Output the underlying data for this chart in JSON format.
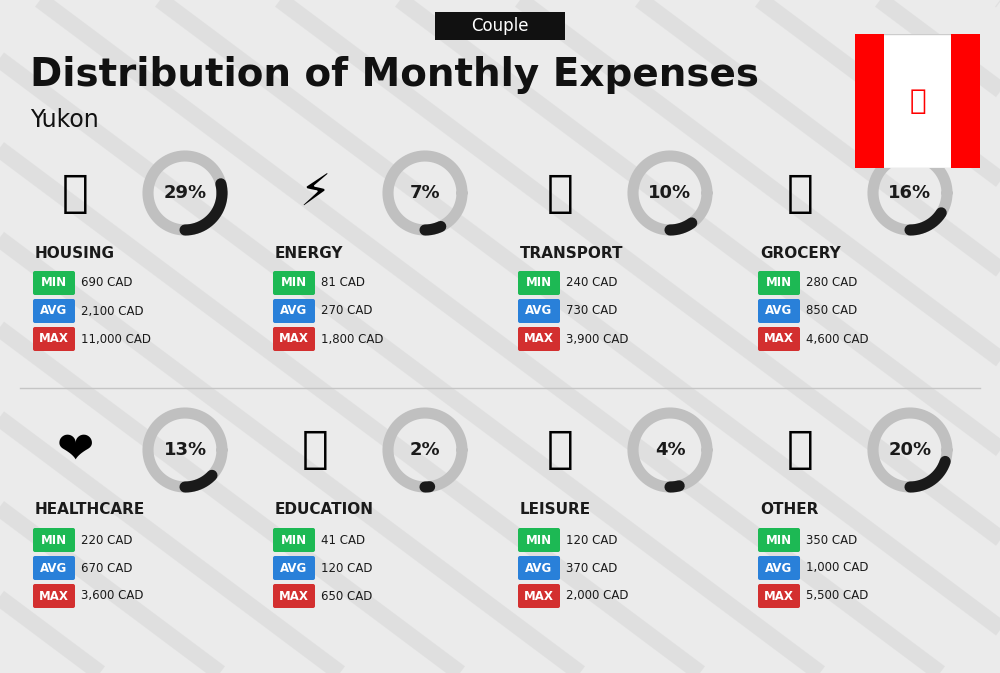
{
  "title": "Distribution of Monthly Expenses",
  "subtitle": "Couple",
  "location": "Yukon",
  "bg_color": "#ebebeb",
  "categories": [
    {
      "name": "HOUSING",
      "percent": 29,
      "min": "690 CAD",
      "avg": "2,100 CAD",
      "max": "11,000 CAD",
      "icon": "🏙",
      "col": 0,
      "row": 0
    },
    {
      "name": "ENERGY",
      "percent": 7,
      "min": "81 CAD",
      "avg": "270 CAD",
      "max": "1,800 CAD",
      "icon": "⚡",
      "col": 1,
      "row": 0
    },
    {
      "name": "TRANSPORT",
      "percent": 10,
      "min": "240 CAD",
      "avg": "730 CAD",
      "max": "3,900 CAD",
      "icon": "🚌",
      "col": 2,
      "row": 0
    },
    {
      "name": "GROCERY",
      "percent": 16,
      "min": "280 CAD",
      "avg": "850 CAD",
      "max": "4,600 CAD",
      "icon": "🛒",
      "col": 3,
      "row": 0
    },
    {
      "name": "HEALTHCARE",
      "percent": 13,
      "min": "220 CAD",
      "avg": "670 CAD",
      "max": "3,600 CAD",
      "icon": "❤",
      "col": 0,
      "row": 1
    },
    {
      "name": "EDUCATION",
      "percent": 2,
      "min": "41 CAD",
      "avg": "120 CAD",
      "max": "650 CAD",
      "icon": "🎓",
      "col": 1,
      "row": 1
    },
    {
      "name": "LEISURE",
      "percent": 4,
      "min": "120 CAD",
      "avg": "370 CAD",
      "max": "2,000 CAD",
      "icon": "🛍",
      "col": 2,
      "row": 1
    },
    {
      "name": "OTHER",
      "percent": 20,
      "min": "350 CAD",
      "avg": "1,000 CAD",
      "max": "5,500 CAD",
      "icon": "💰",
      "col": 3,
      "row": 1
    }
  ],
  "min_color": "#1db954",
  "avg_color": "#2980d9",
  "max_color": "#d32f2f",
  "ring_filled_color": "#1a1a1a",
  "ring_empty_color": "#c0c0c0",
  "title_color": "#111111",
  "subtitle_bg": "#111111",
  "subtitle_text": "#ffffff",
  "stripe_color": "#d5d5d5",
  "text_color": "#1a1a1a"
}
